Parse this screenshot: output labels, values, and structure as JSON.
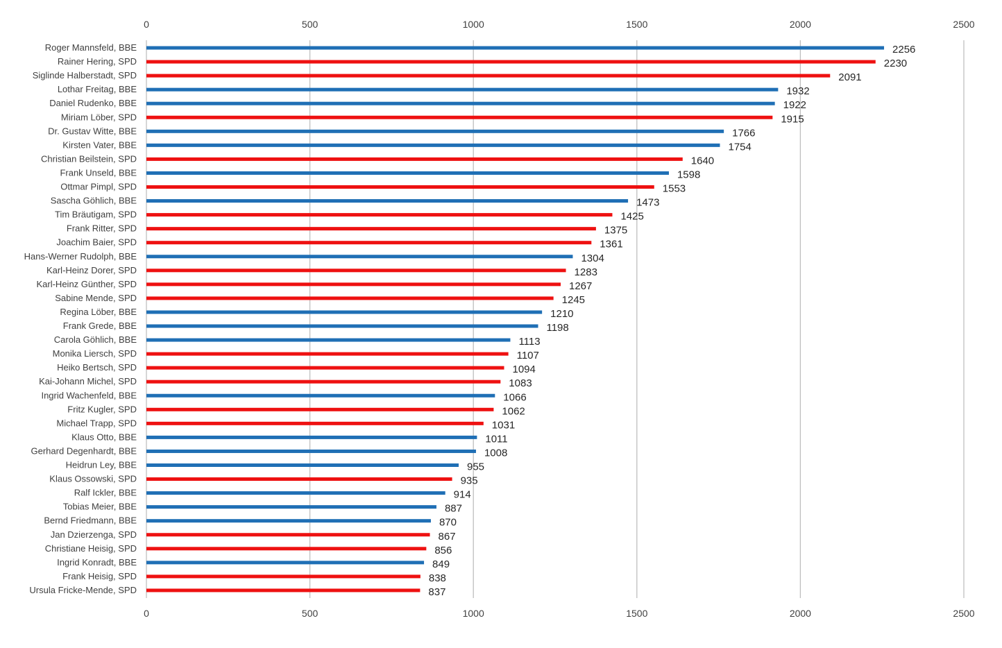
{
  "chart_data": {
    "type": "bar",
    "orientation": "horizontal",
    "title": "",
    "xlabel": "",
    "ylabel": "",
    "xlim": [
      0,
      2500
    ],
    "xticks": [
      0,
      500,
      1000,
      1500,
      2000,
      2500
    ],
    "x_axis_labels": "top-and-bottom",
    "grid": true,
    "legend": "none",
    "colors": {
      "BBE": "#1f6fb5",
      "SPD": "#ee1111",
      "grid": "#bfbfbf"
    },
    "bars": [
      {
        "label": "Roger Mannsfeld, BBE",
        "value": 2256,
        "group": "BBE"
      },
      {
        "label": "Rainer Hering, SPD",
        "value": 2230,
        "group": "SPD"
      },
      {
        "label": "Siglinde Halberstadt, SPD",
        "value": 2091,
        "group": "SPD"
      },
      {
        "label": "Lothar Freitag, BBE",
        "value": 1932,
        "group": "BBE"
      },
      {
        "label": "Daniel Rudenko, BBE",
        "value": 1922,
        "group": "BBE"
      },
      {
        "label": "Miriam Löber, SPD",
        "value": 1915,
        "group": "SPD"
      },
      {
        "label": "Dr. Gustav Witte, BBE",
        "value": 1766,
        "group": "BBE"
      },
      {
        "label": "Kirsten Vater, BBE",
        "value": 1754,
        "group": "BBE"
      },
      {
        "label": "Christian Beilstein, SPD",
        "value": 1640,
        "group": "SPD"
      },
      {
        "label": "Frank Unseld, BBE",
        "value": 1598,
        "group": "BBE"
      },
      {
        "label": "Ottmar Pimpl, SPD",
        "value": 1553,
        "group": "SPD"
      },
      {
        "label": "Sascha Göhlich, BBE",
        "value": 1473,
        "group": "BBE"
      },
      {
        "label": "Tim Bräutigam, SPD",
        "value": 1425,
        "group": "SPD"
      },
      {
        "label": "Frank Ritter, SPD",
        "value": 1375,
        "group": "SPD"
      },
      {
        "label": "Joachim Baier, SPD",
        "value": 1361,
        "group": "SPD"
      },
      {
        "label": "Hans-Werner Rudolph, BBE",
        "value": 1304,
        "group": "BBE"
      },
      {
        "label": "Karl-Heinz Dorer, SPD",
        "value": 1283,
        "group": "SPD"
      },
      {
        "label": "Karl-Heinz Günther, SPD",
        "value": 1267,
        "group": "SPD"
      },
      {
        "label": "Sabine Mende, SPD",
        "value": 1245,
        "group": "SPD"
      },
      {
        "label": "Regina Löber, BBE",
        "value": 1210,
        "group": "BBE"
      },
      {
        "label": "Frank Grede, BBE",
        "value": 1198,
        "group": "BBE"
      },
      {
        "label": "Carola Göhlich, BBE",
        "value": 1113,
        "group": "BBE"
      },
      {
        "label": "Monika Liersch, SPD",
        "value": 1107,
        "group": "SPD"
      },
      {
        "label": "Heiko Bertsch, SPD",
        "value": 1094,
        "group": "SPD"
      },
      {
        "label": "Kai-Johann Michel, SPD",
        "value": 1083,
        "group": "SPD"
      },
      {
        "label": "Ingrid Wachenfeld, BBE",
        "value": 1066,
        "group": "BBE"
      },
      {
        "label": "Fritz Kugler, SPD",
        "value": 1062,
        "group": "SPD"
      },
      {
        "label": "Michael Trapp, SPD",
        "value": 1031,
        "group": "SPD"
      },
      {
        "label": "Klaus Otto, BBE",
        "value": 1011,
        "group": "BBE"
      },
      {
        "label": "Gerhard Degenhardt, BBE",
        "value": 1008,
        "group": "BBE"
      },
      {
        "label": "Heidrun Ley, BBE",
        "value": 955,
        "group": "BBE"
      },
      {
        "label": "Klaus Ossowski, SPD",
        "value": 935,
        "group": "SPD"
      },
      {
        "label": "Ralf Ickler, BBE",
        "value": 914,
        "group": "BBE"
      },
      {
        "label": "Tobias Meier, BBE",
        "value": 887,
        "group": "BBE"
      },
      {
        "label": "Bernd Friedmann, BBE",
        "value": 870,
        "group": "BBE"
      },
      {
        "label": "Jan Dzierzenga, SPD",
        "value": 867,
        "group": "SPD"
      },
      {
        "label": "Christiane Heisig, SPD",
        "value": 856,
        "group": "SPD"
      },
      {
        "label": "Ingrid Konradt, BBE",
        "value": 849,
        "group": "BBE"
      },
      {
        "label": "Frank Heisig, SPD",
        "value": 838,
        "group": "SPD"
      },
      {
        "label": "Ursula Fricke-Mende, SPD",
        "value": 837,
        "group": "SPD"
      }
    ]
  }
}
